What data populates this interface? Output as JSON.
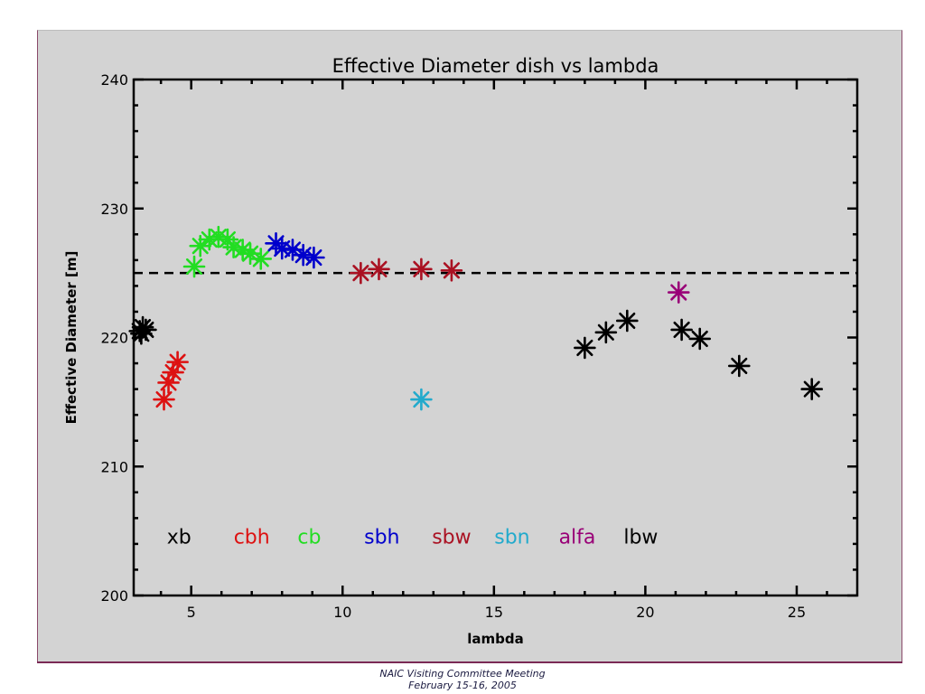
{
  "footer": {
    "line1": "NAIC Visiting Committee Meeting",
    "line2": "February 15-16, 2005"
  },
  "chart_data": {
    "type": "scatter",
    "title": "Effective Diameter dish vs lambda",
    "xlabel": "lambda",
    "ylabel": "Effective Diameter [m]",
    "xlim": [
      3.1,
      27.0
    ],
    "ylim": [
      200,
      240
    ],
    "xticks": [
      5,
      10,
      15,
      20,
      25
    ],
    "yticks": [
      200,
      210,
      220,
      230,
      240
    ],
    "reference_line": {
      "y": 225,
      "style": "dashed",
      "color": "#000000"
    },
    "series": [
      {
        "name": "xb",
        "color": "#000000",
        "x": [
          3.3,
          3.4,
          3.5,
          3.35
        ],
        "y": [
          220.5,
          220.8,
          220.6,
          220.3
        ]
      },
      {
        "name": "cbh",
        "color": "#dd1111",
        "x": [
          4.1,
          4.25,
          4.4,
          4.55
        ],
        "y": [
          215.2,
          216.5,
          217.3,
          218.1
        ]
      },
      {
        "name": "cb",
        "color": "#22dd22",
        "x": [
          5.1,
          5.3,
          5.6,
          5.9,
          6.2,
          6.4,
          6.7,
          6.95,
          7.3
        ],
        "y": [
          225.5,
          227.1,
          227.6,
          227.8,
          227.6,
          227.0,
          226.8,
          226.5,
          226.1
        ]
      },
      {
        "name": "sbh",
        "color": "#0000cc",
        "x": [
          7.8,
          8.0,
          8.35,
          8.7,
          9.05
        ],
        "y": [
          227.3,
          226.9,
          226.8,
          226.4,
          226.2
        ]
      },
      {
        "name": "sbw",
        "color": "#aa1122",
        "x": [
          10.6,
          11.2,
          12.6,
          13.6
        ],
        "y": [
          225.0,
          225.3,
          225.3,
          225.2
        ]
      },
      {
        "name": "sbn",
        "color": "#22aacc",
        "x": [
          12.6
        ],
        "y": [
          215.2
        ]
      },
      {
        "name": "alfa",
        "color": "#990077",
        "x": [
          21.1
        ],
        "y": [
          223.5
        ]
      },
      {
        "name": "lbw",
        "color": "#000000",
        "x": [
          18.0,
          18.7,
          19.4,
          21.2,
          21.8,
          23.1,
          25.5
        ],
        "y": [
          219.2,
          220.4,
          221.3,
          220.6,
          219.9,
          217.8,
          216.0
        ]
      }
    ],
    "legend": {
      "placement": "bottom-left",
      "entries": [
        {
          "label": "xb",
          "color": "#000000",
          "x": 4.6
        },
        {
          "label": "cbh",
          "color": "#dd1111",
          "x": 7.0
        },
        {
          "label": "cb",
          "color": "#22dd22",
          "x": 8.9
        },
        {
          "label": "sbh",
          "color": "#0000cc",
          "x": 11.3
        },
        {
          "label": "sbw",
          "color": "#aa1122",
          "x": 13.6
        },
        {
          "label": "sbn",
          "color": "#22aacc",
          "x": 15.6
        },
        {
          "label": "alfa",
          "color": "#990077",
          "x": 17.75
        },
        {
          "label": "lbw",
          "color": "#000000",
          "x": 19.85
        }
      ],
      "y": 204.6
    },
    "grid": false
  }
}
